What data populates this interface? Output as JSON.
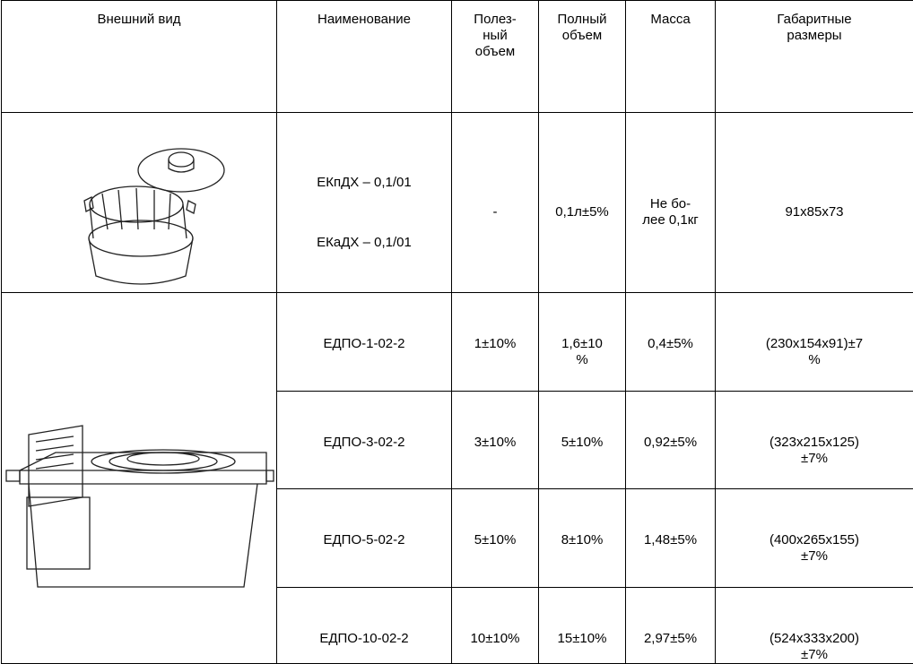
{
  "table": {
    "header": [
      [
        "Внешний вид"
      ],
      [
        "Наименование"
      ],
      [
        "Полез-",
        "ный",
        "объем"
      ],
      [
        "Полный",
        "объем"
      ],
      [
        "Масса"
      ],
      [
        "Габаритные",
        "размеры"
      ]
    ],
    "rows": [
      {
        "name": [
          "ЕКпДХ – 0,1/01",
          "ЕКаДХ – 0,1/01"
        ],
        "useful": [
          "-"
        ],
        "full": [
          "0,1л±5%"
        ],
        "mass": [
          "Не бо-",
          "лее 0,1кг"
        ],
        "size": [
          "91x85x73"
        ]
      },
      {
        "name": [
          "ЕДПО-1-02-2"
        ],
        "useful": [
          "1±10%"
        ],
        "full": [
          "1,6±10",
          "%"
        ],
        "mass": [
          "0,4±5%"
        ],
        "size": [
          "(230x154x91)±7",
          "%"
        ]
      },
      {
        "name": [
          "ЕДПО-3-02-2"
        ],
        "useful": [
          "3±10%"
        ],
        "full": [
          "5±10%"
        ],
        "mass": [
          "0,92±5%"
        ],
        "size": [
          "(323x215x125)",
          "±7%"
        ]
      },
      {
        "name": [
          "ЕДПО-5-02-2"
        ],
        "useful": [
          "5±10%"
        ],
        "full": [
          "8±10%"
        ],
        "mass": [
          "1,48±5%"
        ],
        "size": [
          "(400x265x155)",
          "±7%"
        ]
      },
      {
        "name": [
          "ЕДПО-10-02-2"
        ],
        "useful": [
          "10±10%"
        ],
        "full": [
          "15±10%"
        ],
        "mass": [
          "2,97±5%"
        ],
        "size": [
          "(524x333x200)",
          "±7%"
        ]
      }
    ]
  }
}
